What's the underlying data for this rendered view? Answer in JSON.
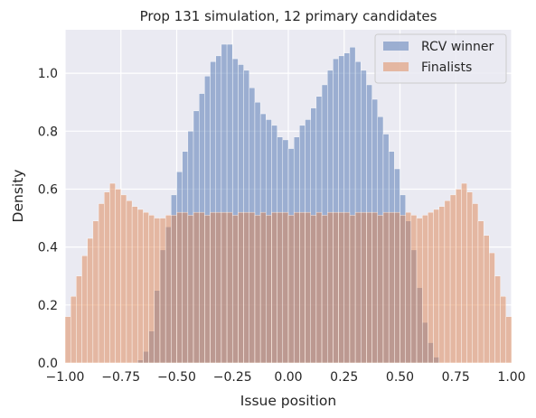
{
  "chart_data": {
    "type": "histogram",
    "title": "Prop 131 simulation, 12 primary candidates",
    "xlabel": "Issue position",
    "ylabel": "Density",
    "xlim": [
      -1.0,
      1.0
    ],
    "ylim": [
      0.0,
      1.15
    ],
    "bin_width": 0.025,
    "x_ticks": [
      -1.0,
      -0.75,
      -0.5,
      -0.25,
      0.0,
      0.25,
      0.5,
      0.75,
      1.0
    ],
    "x_tick_labels": [
      "−1.00",
      "−0.75",
      "−0.50",
      "−0.25",
      "0.00",
      "0.25",
      "0.50",
      "0.75",
      "1.00"
    ],
    "y_ticks": [
      0.0,
      0.2,
      0.4,
      0.6,
      0.8,
      1.0
    ],
    "y_tick_labels": [
      "0.0",
      "0.2",
      "0.4",
      "0.6",
      "0.8",
      "1.0"
    ],
    "grid": true,
    "legend_position": "top-right",
    "bin_edges_start": -1.0,
    "series": [
      {
        "name": "RCV winner",
        "color": "#4c72b0",
        "values": [
          0,
          0,
          0,
          0,
          0,
          0,
          0,
          0,
          0,
          0,
          0,
          0,
          0,
          0.01,
          0.04,
          0.11,
          0.25,
          0.39,
          0.47,
          0.58,
          0.66,
          0.73,
          0.8,
          0.87,
          0.93,
          0.99,
          1.04,
          1.06,
          1.1,
          1.1,
          1.05,
          1.03,
          1.01,
          0.95,
          0.9,
          0.86,
          0.84,
          0.82,
          0.78,
          0.77,
          0.74,
          0.78,
          0.82,
          0.84,
          0.88,
          0.92,
          0.96,
          1.01,
          1.05,
          1.06,
          1.07,
          1.09,
          1.04,
          1.01,
          0.96,
          0.91,
          0.85,
          0.79,
          0.73,
          0.67,
          0.58,
          0.49,
          0.39,
          0.26,
          0.14,
          0.07,
          0.02,
          0,
          0,
          0,
          0,
          0,
          0,
          0,
          0,
          0,
          0,
          0,
          0,
          0
        ]
      },
      {
        "name": "Finalists",
        "color": "#dd8452",
        "values": [
          0.16,
          0.23,
          0.3,
          0.37,
          0.43,
          0.49,
          0.55,
          0.59,
          0.62,
          0.6,
          0.58,
          0.56,
          0.54,
          0.53,
          0.52,
          0.51,
          0.5,
          0.5,
          0.51,
          0.51,
          0.52,
          0.52,
          0.51,
          0.52,
          0.52,
          0.51,
          0.52,
          0.52,
          0.52,
          0.52,
          0.51,
          0.52,
          0.52,
          0.52,
          0.51,
          0.52,
          0.51,
          0.52,
          0.52,
          0.52,
          0.51,
          0.52,
          0.52,
          0.52,
          0.51,
          0.52,
          0.51,
          0.52,
          0.52,
          0.52,
          0.52,
          0.51,
          0.52,
          0.52,
          0.52,
          0.52,
          0.51,
          0.52,
          0.52,
          0.52,
          0.51,
          0.52,
          0.51,
          0.5,
          0.51,
          0.52,
          0.53,
          0.54,
          0.56,
          0.58,
          0.6,
          0.62,
          0.59,
          0.55,
          0.49,
          0.44,
          0.38,
          0.3,
          0.23,
          0.16
        ]
      }
    ]
  }
}
